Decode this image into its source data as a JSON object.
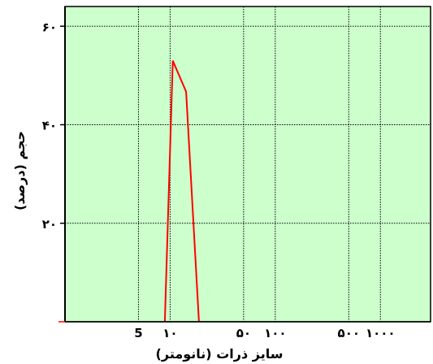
{
  "chart_data": {
    "type": "line",
    "title": "",
    "xlabel": "سایز ذرات (نانومتر)",
    "ylabel": "حجم (درصد)",
    "x_scale": "log",
    "xlim": [
      1,
      3000
    ],
    "ylim": [
      0,
      64
    ],
    "grid": true,
    "plot_background": "#ccffcc",
    "line_color": "#ff0000",
    "x_ticks": [
      {
        "value": 5,
        "label": "5"
      },
      {
        "value": 10,
        "label": "۱۰"
      },
      {
        "value": 50,
        "label": "۵۰"
      },
      {
        "value": 100,
        "label": "۱۰۰"
      },
      {
        "value": 500,
        "label": "۵۰۰"
      },
      {
        "value": 1000,
        "label": "۱۰۰۰"
      }
    ],
    "y_ticks": [
      {
        "value": 20,
        "label": "۲۰"
      },
      {
        "value": 40,
        "label": "۴۰"
      },
      {
        "value": 60,
        "label": "۶۰"
      }
    ],
    "series": [
      {
        "x": [
          8.9,
          10.6,
          14.2,
          18.8
        ],
        "y": [
          0,
          53,
          46.7,
          0
        ]
      }
    ]
  }
}
